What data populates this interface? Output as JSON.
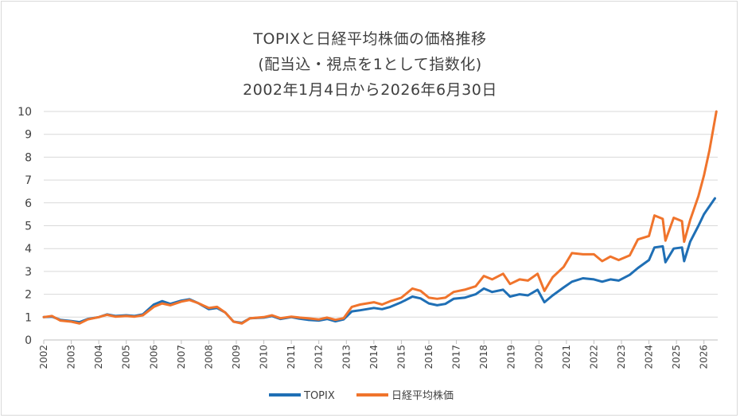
{
  "chart_data": {
    "type": "line",
    "title_lines": [
      "TOPIXと日経平均株価の価格推移",
      "(配当込・視点を1として指数化)",
      "2002年1月4日から2026年6月30日"
    ],
    "xlabel": "",
    "ylabel": "",
    "ylim": [
      0,
      10
    ],
    "xlim": [
      2002.0,
      2026.5
    ],
    "yticks": [
      "0",
      "1",
      "2",
      "3",
      "4",
      "5",
      "6",
      "7",
      "8",
      "9",
      "10"
    ],
    "xticks": [
      "2002",
      "2003",
      "2004",
      "2005",
      "2006",
      "2007",
      "2008",
      "2009",
      "2010",
      "2011",
      "2012",
      "2013",
      "2014",
      "2015",
      "2016",
      "2017",
      "2018",
      "2019",
      "2020",
      "2021",
      "2022",
      "2023",
      "2024",
      "2025",
      "2026"
    ],
    "grid": "horizontal",
    "legend_position": "bottom",
    "series": [
      {
        "name": "TOPIX",
        "color": "#1f6fb5",
        "points": [
          [
            2002.0,
            1.0
          ],
          [
            2002.3,
            1.02
          ],
          [
            2002.6,
            0.88
          ],
          [
            2003.0,
            0.83
          ],
          [
            2003.3,
            0.78
          ],
          [
            2003.6,
            0.92
          ],
          [
            2004.0,
            1.0
          ],
          [
            2004.3,
            1.12
          ],
          [
            2004.6,
            1.05
          ],
          [
            2005.0,
            1.08
          ],
          [
            2005.3,
            1.05
          ],
          [
            2005.6,
            1.12
          ],
          [
            2006.0,
            1.55
          ],
          [
            2006.3,
            1.7
          ],
          [
            2006.6,
            1.58
          ],
          [
            2007.0,
            1.72
          ],
          [
            2007.3,
            1.78
          ],
          [
            2007.6,
            1.62
          ],
          [
            2008.0,
            1.35
          ],
          [
            2008.3,
            1.4
          ],
          [
            2008.6,
            1.2
          ],
          [
            2008.9,
            0.8
          ],
          [
            2009.2,
            0.75
          ],
          [
            2009.5,
            0.95
          ],
          [
            2010.0,
            0.98
          ],
          [
            2010.3,
            1.05
          ],
          [
            2010.6,
            0.92
          ],
          [
            2011.0,
            1.0
          ],
          [
            2011.3,
            0.93
          ],
          [
            2011.6,
            0.88
          ],
          [
            2012.0,
            0.85
          ],
          [
            2012.3,
            0.92
          ],
          [
            2012.6,
            0.82
          ],
          [
            2012.9,
            0.9
          ],
          [
            2013.2,
            1.25
          ],
          [
            2013.5,
            1.3
          ],
          [
            2014.0,
            1.4
          ],
          [
            2014.3,
            1.35
          ],
          [
            2014.6,
            1.45
          ],
          [
            2015.0,
            1.65
          ],
          [
            2015.4,
            1.9
          ],
          [
            2015.7,
            1.82
          ],
          [
            2016.0,
            1.6
          ],
          [
            2016.3,
            1.52
          ],
          [
            2016.6,
            1.58
          ],
          [
            2016.9,
            1.8
          ],
          [
            2017.3,
            1.85
          ],
          [
            2017.7,
            2.0
          ],
          [
            2018.0,
            2.25
          ],
          [
            2018.3,
            2.1
          ],
          [
            2018.7,
            2.2
          ],
          [
            2018.95,
            1.9
          ],
          [
            2019.3,
            2.0
          ],
          [
            2019.6,
            1.95
          ],
          [
            2019.95,
            2.2
          ],
          [
            2020.2,
            1.65
          ],
          [
            2020.5,
            1.95
          ],
          [
            2020.9,
            2.3
          ],
          [
            2021.2,
            2.55
          ],
          [
            2021.6,
            2.7
          ],
          [
            2022.0,
            2.65
          ],
          [
            2022.3,
            2.55
          ],
          [
            2022.6,
            2.65
          ],
          [
            2022.9,
            2.6
          ],
          [
            2023.3,
            2.85
          ],
          [
            2023.6,
            3.15
          ],
          [
            2024.0,
            3.5
          ],
          [
            2024.2,
            4.05
          ],
          [
            2024.5,
            4.1
          ],
          [
            2024.6,
            3.4
          ],
          [
            2024.9,
            4.0
          ],
          [
            2025.2,
            4.05
          ],
          [
            2025.28,
            3.45
          ],
          [
            2025.5,
            4.3
          ],
          [
            2025.8,
            5.0
          ],
          [
            2026.0,
            5.5
          ],
          [
            2026.2,
            5.85
          ],
          [
            2026.4,
            6.2
          ]
        ]
      },
      {
        "name": "日経平均株価",
        "color": "#f0742c",
        "points": [
          [
            2002.0,
            1.0
          ],
          [
            2002.3,
            1.05
          ],
          [
            2002.6,
            0.85
          ],
          [
            2003.0,
            0.8
          ],
          [
            2003.3,
            0.72
          ],
          [
            2003.6,
            0.9
          ],
          [
            2004.0,
            1.0
          ],
          [
            2004.3,
            1.1
          ],
          [
            2004.6,
            1.02
          ],
          [
            2005.0,
            1.05
          ],
          [
            2005.3,
            1.02
          ],
          [
            2005.6,
            1.08
          ],
          [
            2006.0,
            1.45
          ],
          [
            2006.3,
            1.6
          ],
          [
            2006.6,
            1.52
          ],
          [
            2007.0,
            1.68
          ],
          [
            2007.3,
            1.75
          ],
          [
            2007.6,
            1.62
          ],
          [
            2008.0,
            1.4
          ],
          [
            2008.3,
            1.45
          ],
          [
            2008.6,
            1.2
          ],
          [
            2008.9,
            0.8
          ],
          [
            2009.2,
            0.72
          ],
          [
            2009.5,
            0.95
          ],
          [
            2010.0,
            1.0
          ],
          [
            2010.3,
            1.08
          ],
          [
            2010.6,
            0.95
          ],
          [
            2011.0,
            1.02
          ],
          [
            2011.3,
            0.98
          ],
          [
            2011.6,
            0.95
          ],
          [
            2012.0,
            0.9
          ],
          [
            2012.3,
            0.98
          ],
          [
            2012.6,
            0.88
          ],
          [
            2012.9,
            0.95
          ],
          [
            2013.2,
            1.45
          ],
          [
            2013.5,
            1.55
          ],
          [
            2014.0,
            1.65
          ],
          [
            2014.3,
            1.55
          ],
          [
            2014.6,
            1.7
          ],
          [
            2015.0,
            1.85
          ],
          [
            2015.4,
            2.25
          ],
          [
            2015.7,
            2.15
          ],
          [
            2016.0,
            1.85
          ],
          [
            2016.3,
            1.8
          ],
          [
            2016.6,
            1.85
          ],
          [
            2016.9,
            2.1
          ],
          [
            2017.3,
            2.2
          ],
          [
            2017.7,
            2.35
          ],
          [
            2018.0,
            2.8
          ],
          [
            2018.3,
            2.65
          ],
          [
            2018.7,
            2.9
          ],
          [
            2018.95,
            2.45
          ],
          [
            2019.3,
            2.65
          ],
          [
            2019.6,
            2.6
          ],
          [
            2019.95,
            2.9
          ],
          [
            2020.2,
            2.15
          ],
          [
            2020.5,
            2.75
          ],
          [
            2020.9,
            3.2
          ],
          [
            2021.2,
            3.8
          ],
          [
            2021.6,
            3.75
          ],
          [
            2022.0,
            3.75
          ],
          [
            2022.3,
            3.45
          ],
          [
            2022.6,
            3.65
          ],
          [
            2022.9,
            3.5
          ],
          [
            2023.3,
            3.7
          ],
          [
            2023.6,
            4.4
          ],
          [
            2024.0,
            4.55
          ],
          [
            2024.2,
            5.45
          ],
          [
            2024.5,
            5.3
          ],
          [
            2024.6,
            4.35
          ],
          [
            2024.9,
            5.35
          ],
          [
            2025.2,
            5.2
          ],
          [
            2025.28,
            4.3
          ],
          [
            2025.5,
            5.25
          ],
          [
            2025.8,
            6.3
          ],
          [
            2026.0,
            7.2
          ],
          [
            2026.2,
            8.3
          ],
          [
            2026.45,
            10.0
          ]
        ]
      }
    ]
  }
}
